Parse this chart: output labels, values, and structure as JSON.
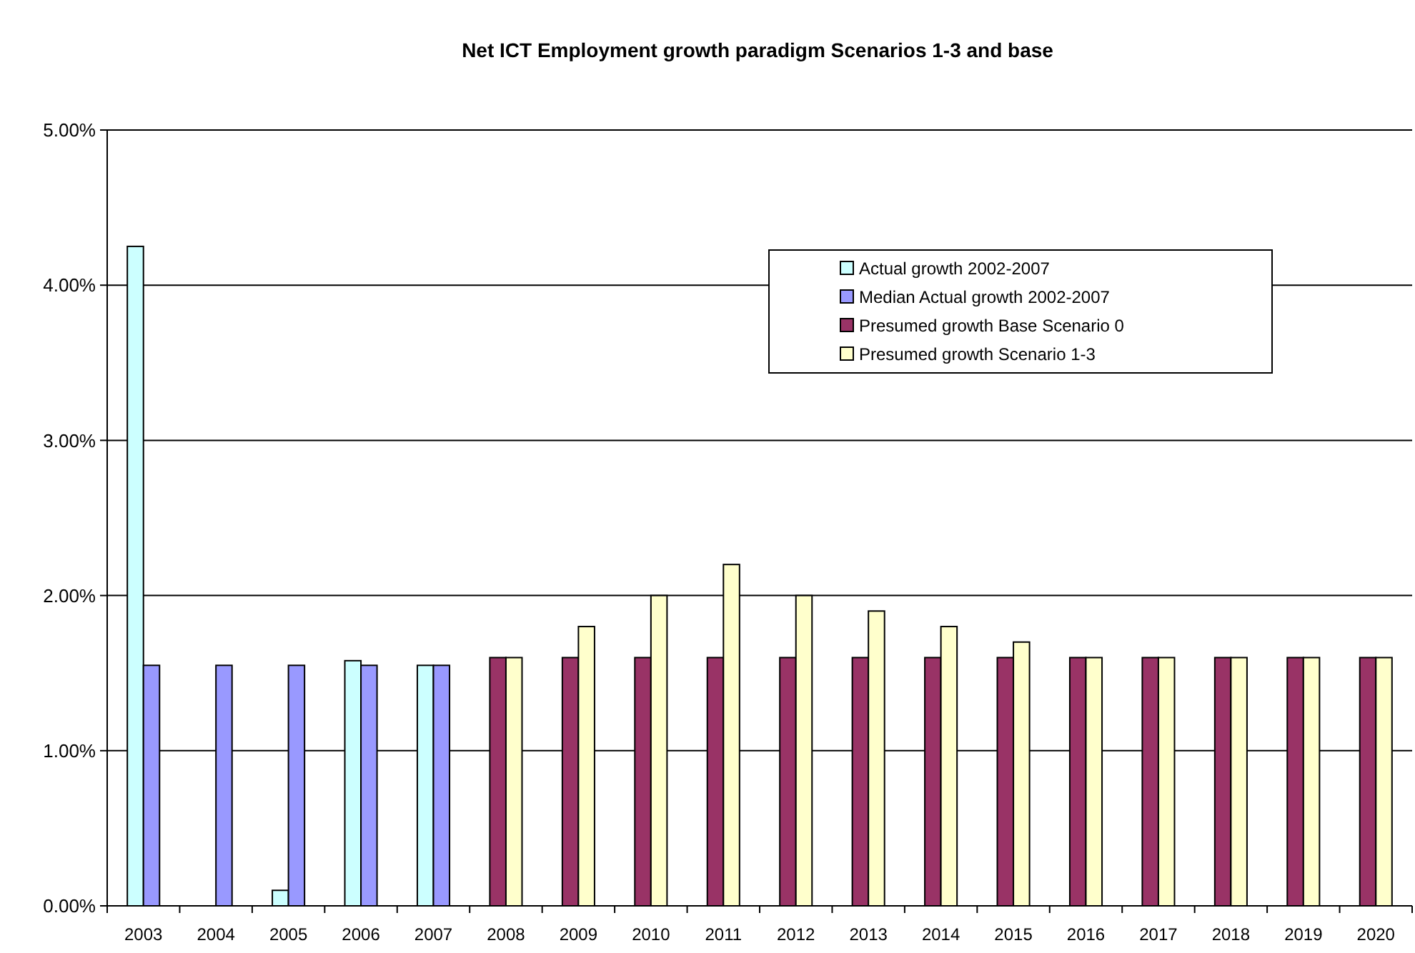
{
  "chart_data": {
    "type": "bar",
    "title": "Net ICT Employment growth paradigm Scenarios 1-3 and base",
    "categories": [
      "2003",
      "2004",
      "2005",
      "2006",
      "2007",
      "2008",
      "2009",
      "2010",
      "2011",
      "2012",
      "2013",
      "2014",
      "2015",
      "2016",
      "2017",
      "2018",
      "2019",
      "2020"
    ],
    "series": [
      {
        "name": "Actual growth 2002-2007",
        "color": "#ccffff",
        "values": [
          4.25,
          null,
          0.1,
          1.58,
          1.55,
          null,
          null,
          null,
          null,
          null,
          null,
          null,
          null,
          null,
          null,
          null,
          null,
          null
        ]
      },
      {
        "name": "Median Actual growth 2002-2007",
        "color": "#9999ff",
        "values": [
          1.55,
          1.55,
          1.55,
          1.55,
          1.55,
          null,
          null,
          null,
          null,
          null,
          null,
          null,
          null,
          null,
          null,
          null,
          null,
          null
        ]
      },
      {
        "name": "Presumed growth Base Scenario 0",
        "color": "#993366",
        "values": [
          null,
          null,
          null,
          null,
          null,
          1.6,
          1.6,
          1.6,
          1.6,
          1.6,
          1.6,
          1.6,
          1.6,
          1.6,
          1.6,
          1.6,
          1.6,
          1.6
        ]
      },
      {
        "name": "Presumed growth Scenario 1-3",
        "color": "#ffffcc",
        "values": [
          null,
          null,
          null,
          null,
          null,
          1.6,
          1.8,
          2.0,
          2.2,
          2.0,
          1.9,
          1.8,
          1.7,
          1.6,
          1.6,
          1.6,
          1.6,
          1.6
        ]
      }
    ],
    "ylim": [
      0,
      5
    ],
    "yticks": [
      {
        "value": 0,
        "label": "0.00%"
      },
      {
        "value": 1,
        "label": "1.00%"
      },
      {
        "value": 2,
        "label": "2.00%"
      },
      {
        "value": 3,
        "label": "3.00%"
      },
      {
        "value": 4,
        "label": "4.00%"
      },
      {
        "value": 5,
        "label": "5.00%"
      }
    ],
    "grid": "y",
    "legend": "top right"
  }
}
